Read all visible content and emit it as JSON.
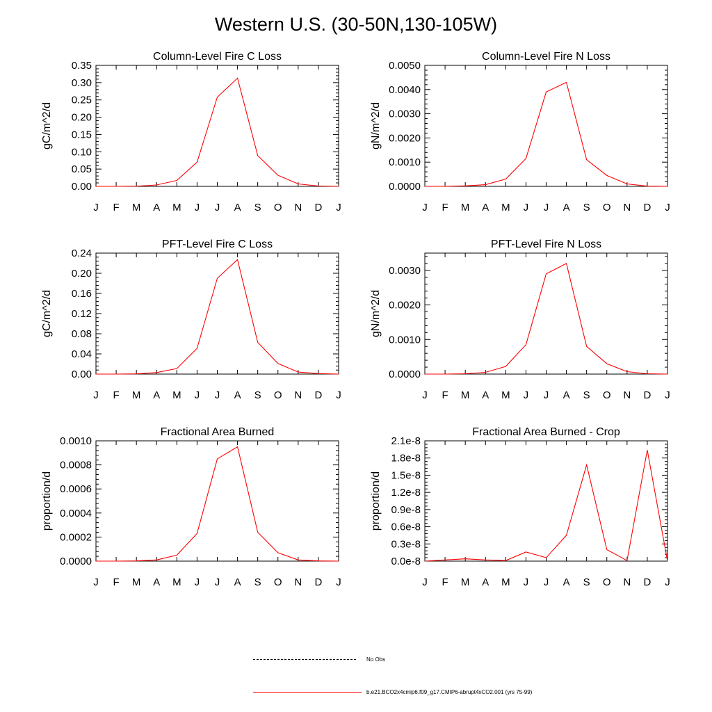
{
  "title": "Western U.S. (30-50N,130-105W)",
  "months": [
    "J",
    "F",
    "M",
    "A",
    "M",
    "J",
    "J",
    "A",
    "S",
    "O",
    "N",
    "D",
    "J"
  ],
  "colors": {
    "model": "#ff0000",
    "obs": "#000000",
    "axis": "#000000"
  },
  "legend": {
    "obs_label": "No Obs",
    "model_label": "b.e21.BCO2x4cmip6.f09_g17.CMIP6-abrupt4xCO2.001 (yrs 75-99)"
  },
  "chart_data": [
    {
      "type": "line",
      "title": "Column-Level Fire C Loss",
      "ylabel": "gC/m^2/d",
      "ylim": [
        0,
        0.35
      ],
      "yticks": [
        0,
        0.05,
        0.1,
        0.15,
        0.2,
        0.25,
        0.3,
        0.35
      ],
      "ytick_labels": [
        "0.00",
        "0.05",
        "0.10",
        "0.15",
        "0.20",
        "0.25",
        "0.30",
        "0.35"
      ],
      "values": [
        0.0,
        0.0,
        0.0005,
        0.004,
        0.017,
        0.07,
        0.258,
        0.313,
        0.089,
        0.032,
        0.007,
        0.001,
        0.0
      ]
    },
    {
      "type": "line",
      "title": "Column-Level Fire N Loss",
      "ylabel": "gN/m^2/d",
      "ylim": [
        0,
        0.005
      ],
      "yticks": [
        0,
        0.001,
        0.002,
        0.003,
        0.004,
        0.005
      ],
      "ytick_labels": [
        "0.0000",
        "0.0010",
        "0.0020",
        "0.0030",
        "0.0040",
        "0.0050"
      ],
      "values": [
        0.0,
        0.0,
        2e-05,
        7e-05,
        0.0003,
        0.00115,
        0.0039,
        0.0043,
        0.0011,
        0.00045,
        0.0001,
        1e-05,
        0.0
      ]
    },
    {
      "type": "line",
      "title": "PFT-Level Fire C Loss",
      "ylabel": "gC/m^2/d",
      "ylim": [
        0,
        0.24
      ],
      "yticks": [
        0,
        0.04,
        0.08,
        0.12,
        0.16,
        0.2,
        0.24
      ],
      "ytick_labels": [
        "0.00",
        "0.04",
        "0.08",
        "0.12",
        "0.16",
        "0.20",
        "0.24"
      ],
      "values": [
        0.0,
        0.0,
        0.0005,
        0.003,
        0.011,
        0.051,
        0.19,
        0.227,
        0.063,
        0.021,
        0.004,
        0.001,
        0.0
      ]
    },
    {
      "type": "line",
      "title": "PFT-Level Fire N Loss",
      "ylabel": "gN/m^2/d",
      "ylim": [
        0,
        0.0035
      ],
      "yticks": [
        0,
        0.001,
        0.002,
        0.003
      ],
      "ytick_labels": [
        "0.0000",
        "0.0010",
        "0.0020",
        "0.0030"
      ],
      "values": [
        0.0,
        0.0,
        1e-05,
        5e-05,
        0.00022,
        0.00085,
        0.0029,
        0.0032,
        0.0008,
        0.0003,
        7e-05,
        1e-05,
        0.0
      ]
    },
    {
      "type": "line",
      "title": "Fractional Area Burned",
      "ylabel": "proportion/d",
      "ylim": [
        0,
        0.001
      ],
      "yticks": [
        0,
        0.0002,
        0.0004,
        0.0006,
        0.0008,
        0.001
      ],
      "ytick_labels": [
        "0.0000",
        "0.0002",
        "0.0004",
        "0.0006",
        "0.0008",
        "0.0010"
      ],
      "values": [
        0.0,
        0.0,
        2e-06,
        1e-05,
        5e-05,
        0.00023,
        0.00085,
        0.00095,
        0.00024,
        7e-05,
        1e-05,
        2e-06,
        0.0
      ]
    },
    {
      "type": "line",
      "title": "Fractional Area Burned - Crop",
      "ylabel": "proportion/d",
      "ylim": [
        0,
        2.1e-08
      ],
      "yticks": [
        0,
        3e-09,
        6e-09,
        9e-09,
        1.2e-08,
        1.5e-08,
        1.8e-08,
        2.1e-08
      ],
      "ytick_labels": [
        "0.0e-8",
        "0.3e-8",
        "0.6e-8",
        "0.9e-8",
        "1.2e-8",
        "1.5e-8",
        "1.8e-8",
        "2.1e-8"
      ],
      "values": [
        0.0,
        2e-10,
        4e-10,
        2e-10,
        1e-10,
        1.6e-09,
        6e-10,
        4.5e-09,
        1.68e-08,
        2e-09,
        1e-10,
        1.94e-08,
        0.0
      ]
    }
  ]
}
